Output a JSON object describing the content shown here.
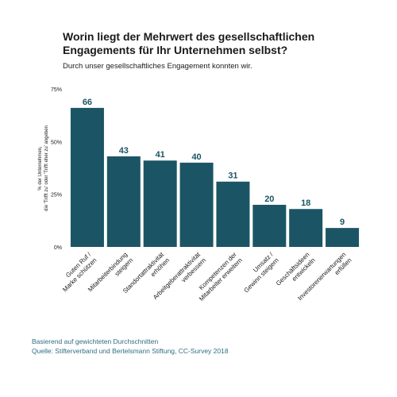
{
  "header": {
    "title_line1": "Worin liegt der Mehrwert des gesellschaftlichen",
    "title_line2": "Engagements für Ihr Unternehmen selbst?",
    "subtitle": "Durch unser gesellschaftliches Engagement konnten wir."
  },
  "footer": {
    "note": "Basierend auf gewichteten Durchschnitten",
    "source": "Quelle: Stifterverband und Bertelsmann Stiftung, CC-Survey 2018"
  },
  "colors": {
    "bar": "#1b5565",
    "bar_label": "#1b5565",
    "text": "#1a1a1a",
    "footer": "#2e6f86"
  },
  "chart_data": {
    "type": "bar",
    "title": "Worin liegt der Mehrwert des gesellschaftlichen Engagements für Ihr Unternehmen selbst?",
    "subtitle": "Durch unser gesellschaftliches Engagement konnten wir.",
    "ylabel_lines": [
      "% der Unternehmen,",
      "die 'Trifft zu' oder 'Trifft eher zu' angeben"
    ],
    "xlabel": "",
    "ylim": [
      0,
      75
    ],
    "yticks": [
      0,
      25,
      50,
      75
    ],
    "ytick_labels": [
      "0%",
      "25%",
      "50%",
      "75%"
    ],
    "grid": false,
    "categories": [
      [
        "Guten Ruf /",
        "Marke schützen"
      ],
      [
        "Mitarbeiterbindung",
        "steigern"
      ],
      [
        "Standortattraktivität",
        "erhöhen"
      ],
      [
        "Arbeitgeberattraktivität",
        "verbessern"
      ],
      [
        "Kompetenzen der",
        "Mitarbeiter erweitern"
      ],
      [
        "Umsatz /",
        "Gewinn steigern"
      ],
      [
        "Geschäftsideen",
        "entwickeln"
      ],
      [
        "Investorenerwartungen",
        "erfüllen"
      ]
    ],
    "values": [
      66,
      43,
      41,
      40,
      31,
      20,
      18,
      9
    ],
    "data_labels": [
      "66",
      "43",
      "41",
      "40",
      "31",
      "20",
      "18",
      "9"
    ]
  }
}
